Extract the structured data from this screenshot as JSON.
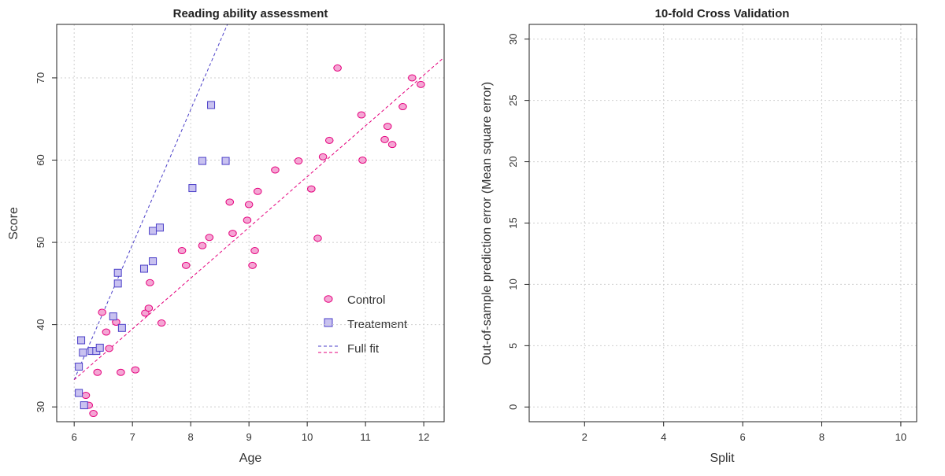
{
  "chart_data": [
    {
      "type": "scatter",
      "title": "Reading ability assessment",
      "xlabel": "Age",
      "ylabel": "Score",
      "xlim": [
        5.7,
        12.35
      ],
      "ylim": [
        28.2,
        76.5
      ],
      "xticks": [
        6,
        7,
        8,
        9,
        10,
        11,
        12
      ],
      "yticks": [
        30,
        40,
        50,
        60,
        70
      ],
      "grid": true,
      "legend_placement": "right",
      "legend": [
        {
          "label": "Control",
          "marker": "circle"
        },
        {
          "label": "Treatement",
          "marker": "square"
        },
        {
          "label": "Full fit",
          "marker": "dashed-line"
        }
      ],
      "series": [
        {
          "name": "Control",
          "marker": "circle",
          "fill": "#f4a6d4",
          "stroke": "#e5007d",
          "points": [
            [
              6.2,
              31.4
            ],
            [
              6.25,
              30.2
            ],
            [
              6.33,
              29.2
            ],
            [
              6.4,
              34.2
            ],
            [
              6.48,
              41.5
            ],
            [
              6.55,
              39.1
            ],
            [
              6.6,
              37.1
            ],
            [
              6.72,
              40.3
            ],
            [
              6.8,
              34.2
            ],
            [
              7.05,
              34.5
            ],
            [
              7.22,
              41.4
            ],
            [
              7.28,
              42.0
            ],
            [
              7.3,
              45.1
            ],
            [
              7.5,
              40.2
            ],
            [
              7.85,
              49.0
            ],
            [
              7.92,
              47.2
            ],
            [
              8.2,
              49.6
            ],
            [
              8.32,
              50.6
            ],
            [
              8.67,
              54.9
            ],
            [
              8.72,
              51.1
            ],
            [
              8.97,
              52.7
            ],
            [
              9.0,
              54.6
            ],
            [
              9.06,
              47.2
            ],
            [
              9.1,
              49.0
            ],
            [
              9.15,
              56.2
            ],
            [
              9.45,
              58.8
            ],
            [
              9.85,
              59.9
            ],
            [
              10.07,
              56.5
            ],
            [
              10.18,
              50.5
            ],
            [
              10.27,
              60.4
            ],
            [
              10.38,
              62.4
            ],
            [
              10.52,
              71.2
            ],
            [
              10.93,
              65.5
            ],
            [
              10.95,
              60.0
            ],
            [
              11.33,
              62.5
            ],
            [
              11.38,
              64.1
            ],
            [
              11.46,
              61.9
            ],
            [
              11.64,
              66.5
            ],
            [
              11.8,
              70.0
            ],
            [
              11.95,
              69.2
            ]
          ]
        },
        {
          "name": "Treatement",
          "marker": "square",
          "fill": "#c9c2f0",
          "stroke": "#4b3fc8",
          "points": [
            [
              6.08,
              31.7
            ],
            [
              6.08,
              34.9
            ],
            [
              6.12,
              38.1
            ],
            [
              6.15,
              36.6
            ],
            [
              6.17,
              30.2
            ],
            [
              6.3,
              36.8
            ],
            [
              6.38,
              36.8
            ],
            [
              6.44,
              37.2
            ],
            [
              6.67,
              41.0
            ],
            [
              6.75,
              46.3
            ],
            [
              6.75,
              45.0
            ],
            [
              6.82,
              39.6
            ],
            [
              7.2,
              46.8
            ],
            [
              7.35,
              51.4
            ],
            [
              7.35,
              47.7
            ],
            [
              7.47,
              51.8
            ],
            [
              8.03,
              56.6
            ],
            [
              8.2,
              59.9
            ],
            [
              8.35,
              66.7
            ],
            [
              8.6,
              59.9
            ]
          ]
        }
      ],
      "fit_lines": [
        {
          "group": "Treatement",
          "color": "#4b3fc8",
          "from": [
            6.0,
            33.3
          ],
          "to": [
            8.63,
            76.5
          ]
        },
        {
          "group": "Control",
          "color": "#e5007d",
          "from": [
            6.0,
            33.3
          ],
          "to": [
            12.35,
            72.5
          ]
        }
      ]
    },
    {
      "type": "line",
      "title": "10-fold Cross Validation",
      "xlabel": "Split",
      "ylabel": "Out-of-sample prediction error (Mean square error)",
      "xlim": [
        0.6,
        10.4
      ],
      "ylim": [
        -1.2,
        31.2
      ],
      "xticks": [
        2,
        4,
        6,
        8,
        10
      ],
      "yticks": [
        0,
        5,
        10,
        15,
        20,
        25,
        30
      ],
      "grid": true,
      "series": []
    }
  ]
}
